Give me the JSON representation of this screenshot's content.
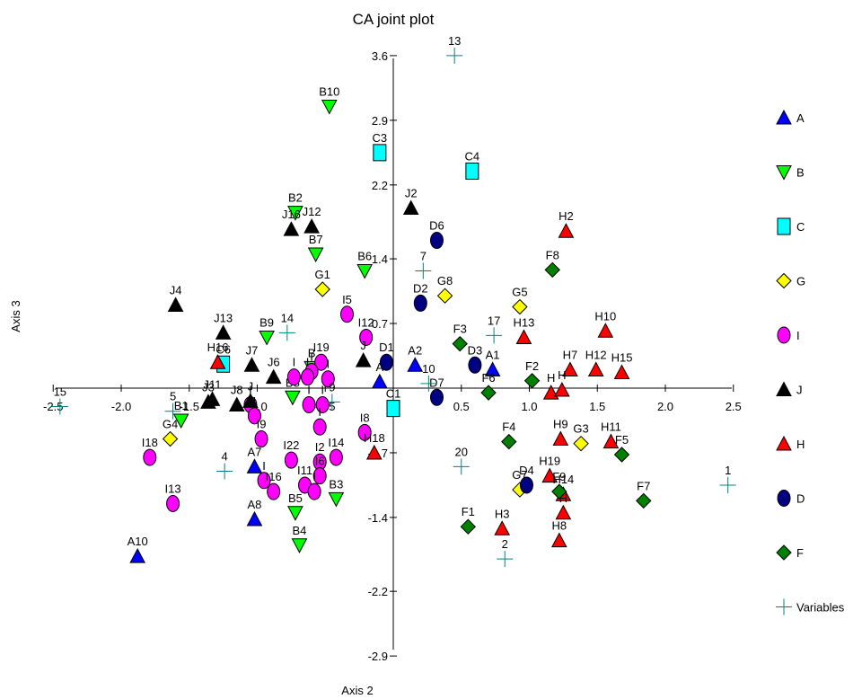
{
  "chart_data": {
    "type": "scatter",
    "title": "CA joint plot",
    "xlabel": "Axis 2",
    "ylabel": "Axis 3",
    "xlim": [
      -2.5,
      2.5
    ],
    "ylim": [
      -2.9,
      3.6
    ],
    "x_ticks": [
      "-2.5",
      "-2.0",
      "-1.5",
      "-1.0",
      "-0.5",
      "0.5",
      "1.0",
      "1.5",
      "2.0",
      "2.5"
    ],
    "y_ticks": [
      "3.6",
      "2.9",
      "2.2",
      "1.4",
      "0.7",
      "-0.7",
      "-1.4",
      "-2.2",
      "-2.9"
    ],
    "legend_position": "right",
    "series": [
      {
        "name": "A",
        "marker": "triangle-up",
        "color": "#0000ff",
        "points": [
          {
            "label": "A1",
            "x": 0.73,
            "y": 0.2
          },
          {
            "label": "A2",
            "x": 0.16,
            "y": 0.25
          },
          {
            "label": "A",
            "x": -0.1,
            "y": 0.07
          },
          {
            "label": "A7",
            "x": -1.02,
            "y": -0.85
          },
          {
            "label": "A8",
            "x": -1.02,
            "y": -1.42
          },
          {
            "label": "A10",
            "x": -1.88,
            "y": -1.82
          }
        ]
      },
      {
        "name": "B",
        "marker": "triangle-down",
        "color": "#00ff00",
        "points": [
          {
            "label": "B10",
            "x": -0.47,
            "y": 3.05
          },
          {
            "label": "B2",
            "x": -0.72,
            "y": 1.9
          },
          {
            "label": "B7",
            "x": -0.57,
            "y": 1.45
          },
          {
            "label": "B6",
            "x": -0.21,
            "y": 1.27
          },
          {
            "label": "B9",
            "x": -0.93,
            "y": 0.55
          },
          {
            "label": "B",
            "x": -0.6,
            "y": 0.22
          },
          {
            "label": "B8",
            "x": -0.74,
            "y": -0.1
          },
          {
            "label": "B1",
            "x": -1.56,
            "y": -0.35
          },
          {
            "label": "B5",
            "x": -0.72,
            "y": -1.35
          },
          {
            "label": "B4",
            "x": -0.69,
            "y": -1.7
          },
          {
            "label": "B3",
            "x": -0.42,
            "y": -1.2
          }
        ]
      },
      {
        "name": "C",
        "marker": "square",
        "color": "#00ffff",
        "points": [
          {
            "label": "C3",
            "x": -0.1,
            "y": 2.55
          },
          {
            "label": "C4",
            "x": 0.58,
            "y": 2.35
          },
          {
            "label": "C6",
            "x": -1.25,
            "y": 0.26
          },
          {
            "label": "C1",
            "x": 0.0,
            "y": -0.22
          }
        ]
      },
      {
        "name": "G",
        "marker": "diamond",
        "color": "#ffff00",
        "points": [
          {
            "label": "G1",
            "x": -0.52,
            "y": 1.07
          },
          {
            "label": "G8",
            "x": 0.38,
            "y": 1.0
          },
          {
            "label": "G5",
            "x": 0.93,
            "y": 0.88
          },
          {
            "label": "G4",
            "x": -1.64,
            "y": -0.55
          },
          {
            "label": "G3",
            "x": 1.38,
            "y": -0.6
          },
          {
            "label": "G7",
            "x": 0.93,
            "y": -1.1
          }
        ]
      },
      {
        "name": "I",
        "marker": "circle",
        "color": "#ff00ff",
        "points": [
          {
            "label": "I5",
            "x": -0.34,
            "y": 0.8
          },
          {
            "label": "I12",
            "x": -0.2,
            "y": 0.55
          },
          {
            "label": "I19",
            "x": -0.53,
            "y": 0.28
          },
          {
            "label": "I",
            "x": -0.6,
            "y": 0.18
          },
          {
            "label": "I",
            "x": -0.73,
            "y": 0.12
          },
          {
            "label": "I",
            "x": -0.63,
            "y": 0.12
          },
          {
            "label": "I",
            "x": -0.48,
            "y": 0.1
          },
          {
            "label": "I",
            "x": -0.62,
            "y": -0.18
          },
          {
            "label": "I",
            "x": -0.52,
            "y": -0.18
          },
          {
            "label": "I",
            "x": -1.05,
            "y": -0.18
          },
          {
            "label": "I",
            "x": -1.02,
            "y": -0.3
          },
          {
            "label": "I",
            "x": -0.54,
            "y": -0.42
          },
          {
            "label": "I9",
            "x": -0.97,
            "y": -0.55
          },
          {
            "label": "I22",
            "x": -0.75,
            "y": -0.78
          },
          {
            "label": "I14",
            "x": -0.42,
            "y": -0.75
          },
          {
            "label": "I2",
            "x": -0.54,
            "y": -0.8
          },
          {
            "label": "I6",
            "x": -0.54,
            "y": -0.95
          },
          {
            "label": "I11",
            "x": -0.65,
            "y": -1.05
          },
          {
            "label": "I",
            "x": -0.95,
            "y": -1.0
          },
          {
            "label": "I16",
            "x": -0.88,
            "y": -1.12
          },
          {
            "label": "I",
            "x": -0.58,
            "y": -1.12
          },
          {
            "label": "I8",
            "x": -0.21,
            "y": -0.48
          },
          {
            "label": "I18",
            "x": -1.79,
            "y": -0.75
          },
          {
            "label": "I13",
            "x": -1.62,
            "y": -1.25
          }
        ]
      },
      {
        "name": "J",
        "marker": "triangle-up",
        "color": "#000000",
        "points": [
          {
            "label": "J2",
            "x": 0.13,
            "y": 1.95
          },
          {
            "label": "J16",
            "x": -0.75,
            "y": 1.72
          },
          {
            "label": "J12",
            "x": -0.6,
            "y": 1.75
          },
          {
            "label": "J4",
            "x": -1.6,
            "y": 0.9
          },
          {
            "label": "J13",
            "x": -1.25,
            "y": 0.6
          },
          {
            "label": "J7",
            "x": -1.04,
            "y": 0.25
          },
          {
            "label": "J6",
            "x": -0.88,
            "y": 0.12
          },
          {
            "label": "J",
            "x": -0.22,
            "y": 0.3
          },
          {
            "label": "J3",
            "x": -1.36,
            "y": -0.15
          },
          {
            "label": "J11",
            "x": -1.33,
            "y": -0.12
          },
          {
            "label": "J8",
            "x": -1.15,
            "y": -0.18
          },
          {
            "label": "J",
            "x": -1.05,
            "y": -0.14
          }
        ]
      },
      {
        "name": "H",
        "marker": "triangle-up",
        "color": "#ff0000",
        "points": [
          {
            "label": "H2",
            "x": 1.27,
            "y": 1.7
          },
          {
            "label": "H10",
            "x": 1.56,
            "y": 0.62
          },
          {
            "label": "H13",
            "x": 0.96,
            "y": 0.55
          },
          {
            "label": "H7",
            "x": 1.3,
            "y": 0.2
          },
          {
            "label": "H12",
            "x": 1.49,
            "y": 0.2
          },
          {
            "label": "H15",
            "x": 1.68,
            "y": 0.17
          },
          {
            "label": "H",
            "x": 1.16,
            "y": -0.05
          },
          {
            "label": "H",
            "x": 1.24,
            "y": -0.02
          },
          {
            "label": "H16",
            "x": -1.29,
            "y": 0.28
          },
          {
            "label": "H18",
            "x": -0.14,
            "y": -0.7
          },
          {
            "label": "H9",
            "x": 1.23,
            "y": -0.55
          },
          {
            "label": "H11",
            "x": 1.6,
            "y": -0.58
          },
          {
            "label": "H19",
            "x": 1.15,
            "y": -0.95
          },
          {
            "label": "H14",
            "x": 1.25,
            "y": -1.15
          },
          {
            "label": "H",
            "x": 1.25,
            "y": -1.35
          },
          {
            "label": "H3",
            "x": 0.8,
            "y": -1.52
          },
          {
            "label": "H8",
            "x": 1.22,
            "y": -1.65
          }
        ]
      },
      {
        "name": "D",
        "marker": "circle",
        "color": "#000080",
        "points": [
          {
            "label": "D6",
            "x": 0.32,
            "y": 1.6
          },
          {
            "label": "D2",
            "x": 0.2,
            "y": 0.92
          },
          {
            "label": "D1",
            "x": -0.05,
            "y": 0.28
          },
          {
            "label": "D3",
            "x": 0.6,
            "y": 0.25
          },
          {
            "label": "D7",
            "x": 0.32,
            "y": -0.1
          },
          {
            "label": "D4",
            "x": 0.98,
            "y": -1.05
          }
        ]
      },
      {
        "name": "F",
        "marker": "diamond",
        "color": "#008000",
        "points": [
          {
            "label": "F8",
            "x": 1.17,
            "y": 1.28
          },
          {
            "label": "F3",
            "x": 0.49,
            "y": 0.48
          },
          {
            "label": "F2",
            "x": 1.02,
            "y": 0.08
          },
          {
            "label": "F6",
            "x": 0.7,
            "y": -0.05
          },
          {
            "label": "F4",
            "x": 0.85,
            "y": -0.58
          },
          {
            "label": "F5",
            "x": 1.68,
            "y": -0.72
          },
          {
            "label": "F9",
            "x": 1.22,
            "y": -1.12
          },
          {
            "label": "F7",
            "x": 1.84,
            "y": -1.22
          },
          {
            "label": "F1",
            "x": 0.55,
            "y": -1.5
          }
        ]
      },
      {
        "name": "Variables",
        "marker": "plus",
        "color": "#008080",
        "points": [
          {
            "label": "13",
            "x": 0.45,
            "y": 3.6
          },
          {
            "label": "7",
            "x": 0.22,
            "y": 1.27
          },
          {
            "label": "14",
            "x": -0.78,
            "y": 0.6
          },
          {
            "label": "17",
            "x": 0.74,
            "y": 0.57
          },
          {
            "label": "10",
            "x": 0.26,
            "y": 0.05
          },
          {
            "label": "15",
            "x": -2.45,
            "y": -0.2
          },
          {
            "label": "5",
            "x": -1.62,
            "y": -0.25
          },
          {
            "label": "9",
            "x": -0.45,
            "y": -0.15
          },
          {
            "label": "4",
            "x": -1.24,
            "y": -0.9
          },
          {
            "label": "20",
            "x": 0.5,
            "y": -0.85
          },
          {
            "label": "1",
            "x": 2.46,
            "y": -1.05
          },
          {
            "label": "2",
            "x": 0.82,
            "y": -1.85
          }
        ]
      }
    ]
  }
}
